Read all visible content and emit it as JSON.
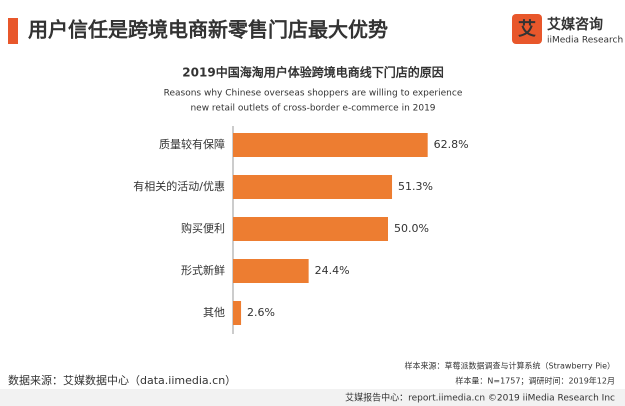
{
  "header": {
    "title": "用户信任是跨境电商新零售门店最大优势",
    "logo_cn": "艾媒咨询",
    "logo_en": "iiMedia Research"
  },
  "chart_data": {
    "type": "bar",
    "orientation": "horizontal",
    "title": "2019中国海淘用户体验跨境电商线下门店的原因",
    "subtitle": [
      "Reasons why Chinese overseas shoppers are willing to experience",
      "new retail outlets of cross-border e-commerce in 2019"
    ],
    "categories": [
      "质量较有保障",
      "有相关的活动/优惠",
      "购买便利",
      "形式新鲜",
      "其他"
    ],
    "values": [
      62.8,
      51.3,
      50.0,
      24.4,
      2.6
    ],
    "value_labels": [
      "62.8%",
      "51.3%",
      "50.0%",
      "24.4%",
      "2.6%"
    ],
    "color": "#ed7d31"
  },
  "notes": [
    "样本来源：草莓派数据调查与计算系统（Strawberry Pie）",
    "样本量：N=1757；调研时间：2019年12月"
  ],
  "source": "数据来源：艾媒数据中心（data.iimedia.cn）",
  "footer": "艾媒报告中心：report.iimedia.cn ©2019 iiMedia Research Inc"
}
